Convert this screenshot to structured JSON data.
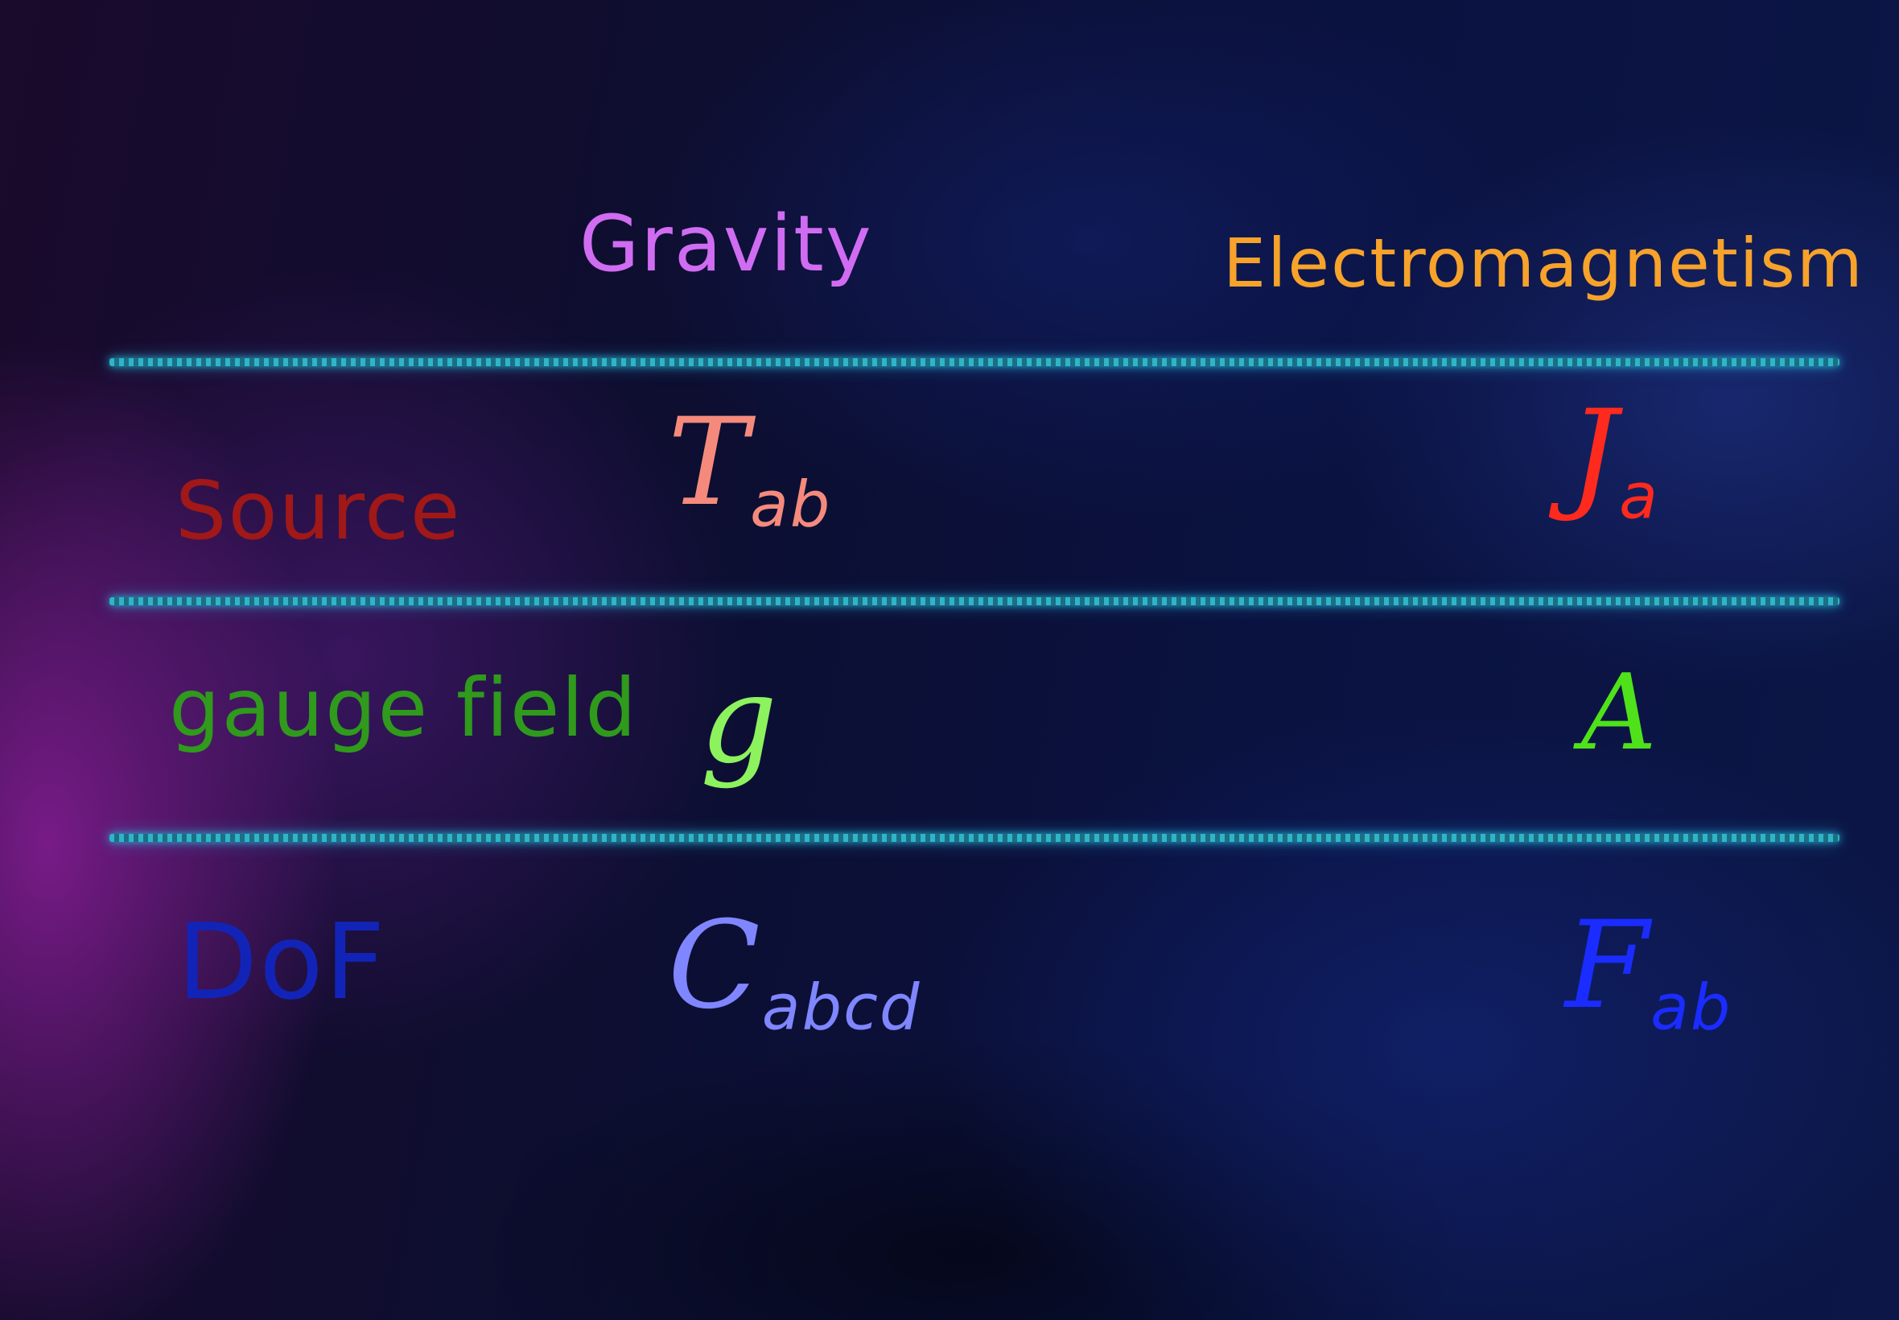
{
  "columns": [
    {
      "label": "Gravity",
      "color": "#d06cf2"
    },
    {
      "label": "Electromagnetism",
      "color": "#f7a22a"
    }
  ],
  "rows": [
    {
      "label": "Source",
      "label_color": "#a01818",
      "gravity": {
        "symbol": "T",
        "sub": "ab",
        "color": "#f58a7c"
      },
      "em": {
        "symbol": "J",
        "sub": "a",
        "color": "#ff2a1e"
      }
    },
    {
      "label": "gauge field",
      "label_color": "#2f9a1c",
      "gravity": {
        "symbol": "g",
        "sub": "",
        "color": "#8cf25e"
      },
      "em": {
        "symbol": "A",
        "sub": "",
        "color": "#4fe21a"
      }
    },
    {
      "label": "DoF",
      "label_color": "#1224b8",
      "gravity": {
        "symbol": "C",
        "sub": "abcd",
        "color": "#7f86ff"
      },
      "em": {
        "symbol": "F",
        "sub": "ab",
        "color": "#1a2cff"
      }
    }
  ],
  "divider_color": "#2fb4c8"
}
